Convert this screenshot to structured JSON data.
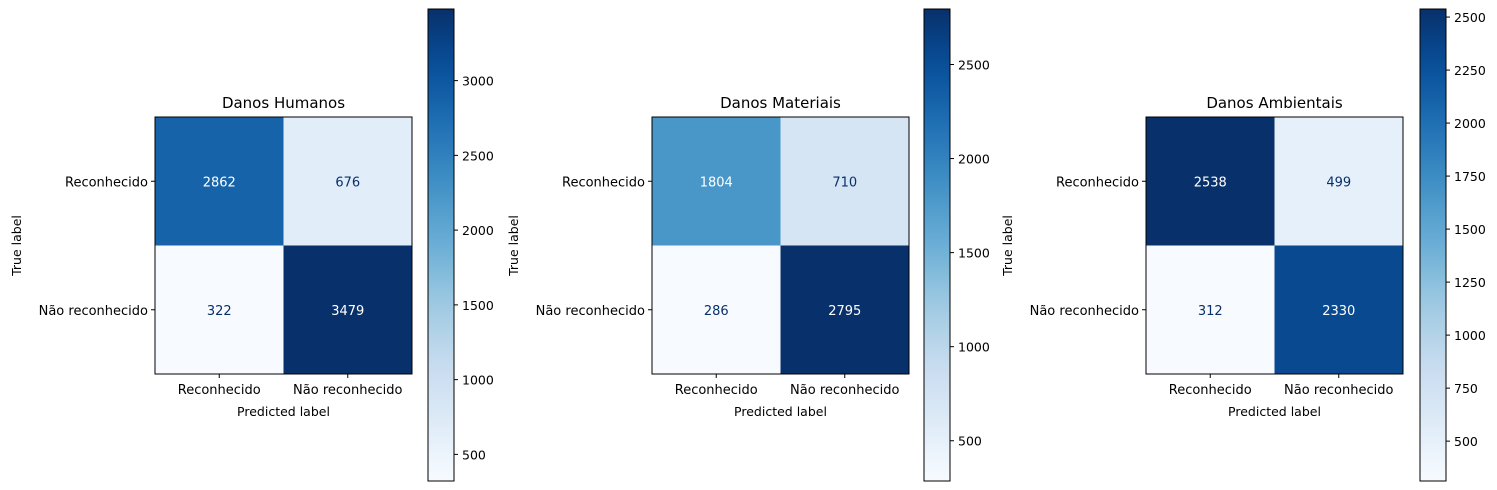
{
  "chart_data": [
    {
      "type": "heatmap",
      "title": "Danos Humanos",
      "xlabel": "Predicted label",
      "ylabel": "True label",
      "x_categories": [
        "Reconhecido",
        "Não reconhecido"
      ],
      "y_categories": [
        "Reconhecido",
        "Não reconhecido"
      ],
      "matrix": [
        [
          2862,
          676
        ],
        [
          322,
          3479
        ]
      ],
      "colormap": "Blues",
      "colorbar": {
        "range": [
          322,
          3479
        ],
        "ticks": [
          500,
          1000,
          1500,
          2000,
          2500,
          3000
        ]
      }
    },
    {
      "type": "heatmap",
      "title": "Danos Materiais",
      "xlabel": "Predicted label",
      "ylabel": "True label",
      "x_categories": [
        "Reconhecido",
        "Não reconhecido"
      ],
      "y_categories": [
        "Reconhecido",
        "Não reconhecido"
      ],
      "matrix": [
        [
          1804,
          710
        ],
        [
          286,
          2795
        ]
      ],
      "colormap": "Blues",
      "colorbar": {
        "range": [
          286,
          2795
        ],
        "ticks": [
          500,
          1000,
          1500,
          2000,
          2500
        ]
      }
    },
    {
      "type": "heatmap",
      "title": "Danos Ambientais",
      "xlabel": "Predicted label",
      "ylabel": "True label",
      "x_categories": [
        "Reconhecido",
        "Não reconhecido"
      ],
      "y_categories": [
        "Reconhecido",
        "Não reconhecido"
      ],
      "matrix": [
        [
          2538,
          499
        ],
        [
          312,
          2330
        ]
      ],
      "colormap": "Blues",
      "colorbar": {
        "range": [
          312,
          2538
        ],
        "ticks": [
          500,
          750,
          1000,
          1250,
          1500,
          1750,
          2000,
          2250,
          2500
        ]
      }
    }
  ]
}
